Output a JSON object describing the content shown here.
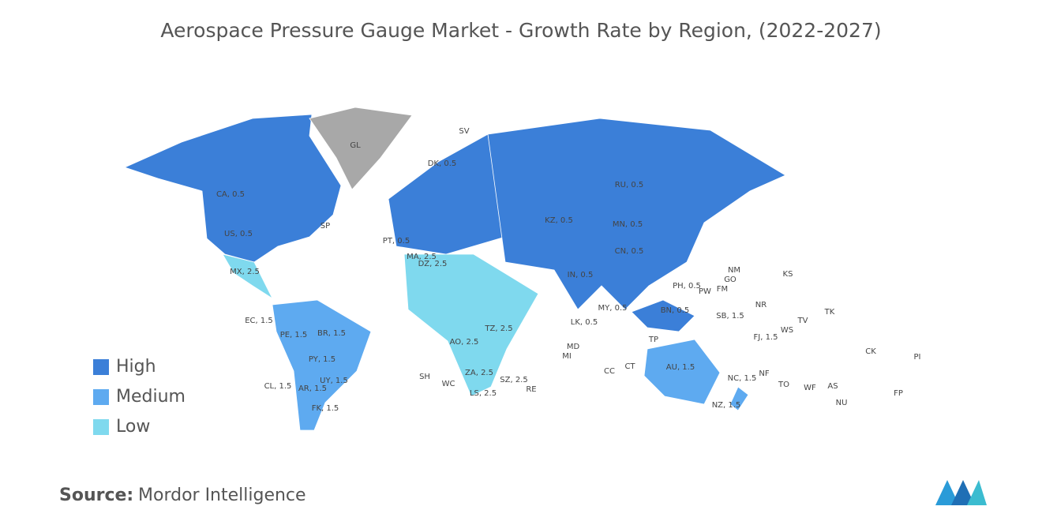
{
  "header": {
    "title": "Aerospace Pressure Gauge Market - Growth Rate by Region, (2022-2027)"
  },
  "legend": [
    {
      "label": "High",
      "color": "#3b7fd8"
    },
    {
      "label": "Medium",
      "color": "#5eaaf0"
    },
    {
      "label": "Low",
      "color": "#7fd9ee"
    }
  ],
  "no_data_color": "#a8a8a8",
  "labels": [
    "CA, 0.5",
    "US, 0.5",
    "GL",
    "RU, 0.5",
    "CN, 0.5",
    "KZ, 0.5",
    "MN, 0.5",
    "AU, 1.5",
    "BR, 1.5",
    "NZ, 1.5",
    "MX, 2.5",
    "CL, 1.5",
    "AR, 1.5",
    "FK, 1.5",
    "PE, 1.5",
    "PY, 1.5",
    "UY, 1.5",
    "EC, 1.5",
    "DZ, 2.5",
    "MA, 2.5",
    "ZA, 2.5",
    "LS, 2.5",
    "SZ, 2.5",
    "AO, 2.5",
    "TZ, 2.5",
    "IN, 0.5",
    "PH, 0.5",
    "MY, 0.5",
    "BN, 0.5",
    "SB, 1.5",
    "NC, 1.5",
    "FJ, 1.5",
    "DK, 0.5",
    "PT, 0.5",
    "SV",
    "SH",
    "WC",
    "RE",
    "MD",
    "MI",
    "CC",
    "CT",
    "TP",
    "NM",
    "GO",
    "KS",
    "PW",
    "FM",
    "NR",
    "TV",
    "TK",
    "WS",
    "NF",
    "TO",
    "WF",
    "AS",
    "CK",
    "PI",
    "FP",
    "NU",
    "LK, 0.5",
    "SP"
  ],
  "source": {
    "label": "Source:",
    "value": "Mordor Intelligence"
  }
}
